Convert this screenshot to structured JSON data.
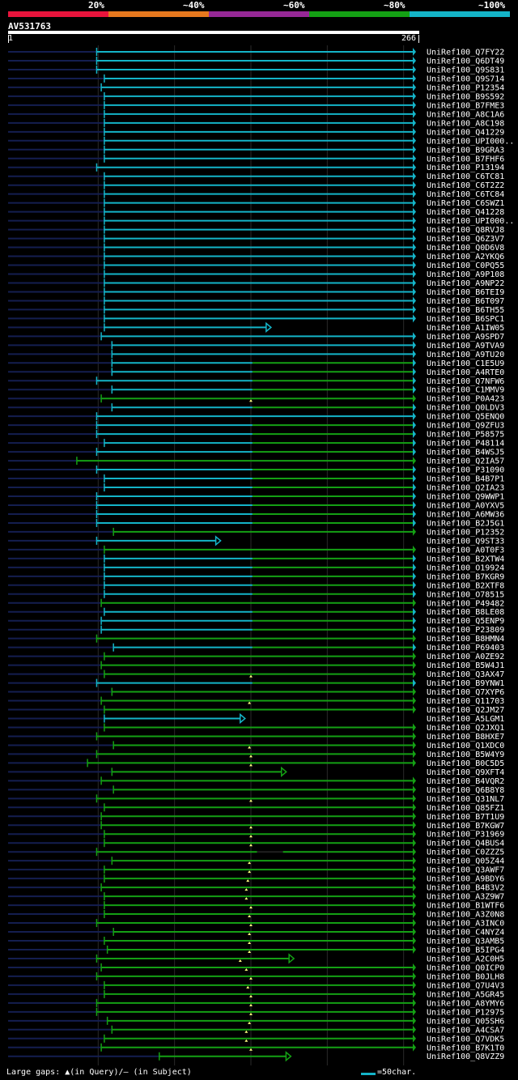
{
  "legend": {
    "segments": [
      {
        "label": "20%",
        "color": "#e8143c"
      },
      {
        "label": "~40%",
        "color": "#e6781e"
      },
      {
        "label": "~60%",
        "color": "#962896"
      },
      {
        "label": "~80%",
        "color": "#14a014"
      },
      {
        "label": "~100%",
        "color": "#14b4c8"
      }
    ]
  },
  "query": {
    "name": "AV531763",
    "start": "1",
    "end": "266"
  },
  "colors": {
    "cyan": "#14b4c8",
    "green": "#14a014",
    "navy": "#141e50",
    "mark": "#ffff80"
  },
  "hits": [
    {
      "name": "UniRef100_Q7FY22",
      "start": 59,
      "color": "cyan",
      "arrow": false
    },
    {
      "name": "UniRef100_Q6DT49",
      "start": 59,
      "color": "cyan",
      "arrow": false
    },
    {
      "name": "UniRef100_Q9S831",
      "start": 59,
      "color": "cyan",
      "arrow": false
    },
    {
      "name": "UniRef100_Q9S714",
      "start": 64,
      "color": "cyan",
      "arrow": false
    },
    {
      "name": "UniRef100_P12354",
      "start": 62,
      "color": "cyan",
      "arrow": false
    },
    {
      "name": "UniRef100_B9S592",
      "start": 64,
      "color": "cyan",
      "arrow": false
    },
    {
      "name": "UniRef100_B7FME3",
      "start": 64,
      "color": "cyan",
      "arrow": false
    },
    {
      "name": "UniRef100_A8C1A6",
      "start": 64,
      "color": "cyan",
      "arrow": false
    },
    {
      "name": "UniRef100_A8C198",
      "start": 64,
      "color": "cyan",
      "arrow": false
    },
    {
      "name": "UniRef100_Q41229",
      "start": 64,
      "color": "cyan",
      "arrow": false
    },
    {
      "name": "UniRef100_UPI000..",
      "start": 64,
      "color": "cyan",
      "arrow": false
    },
    {
      "name": "UniRef100_B9GRA3",
      "start": 64,
      "color": "cyan",
      "arrow": false
    },
    {
      "name": "UniRef100_B7FHF6",
      "start": 64,
      "color": "cyan",
      "arrow": false
    },
    {
      "name": "UniRef100_P13194",
      "start": 59,
      "color": "cyan",
      "arrow": false
    },
    {
      "name": "UniRef100_C6TC81",
      "start": 64,
      "color": "cyan",
      "arrow": false
    },
    {
      "name": "UniRef100_C6T2Z2",
      "start": 64,
      "color": "cyan",
      "arrow": false
    },
    {
      "name": "UniRef100_C6TC84",
      "start": 64,
      "color": "cyan",
      "arrow": false
    },
    {
      "name": "UniRef100_C6SWZ1",
      "start": 64,
      "color": "cyan",
      "arrow": false
    },
    {
      "name": "UniRef100_Q41228",
      "start": 64,
      "color": "cyan",
      "arrow": false
    },
    {
      "name": "UniRef100_UPI000..",
      "start": 64,
      "color": "cyan",
      "arrow": false
    },
    {
      "name": "UniRef100_Q8RVJ8",
      "start": 64,
      "color": "cyan",
      "arrow": false
    },
    {
      "name": "UniRef100_Q6Z3V7",
      "start": 64,
      "color": "cyan",
      "arrow": false
    },
    {
      "name": "UniRef100_Q0D6V8",
      "start": 64,
      "color": "cyan",
      "arrow": false
    },
    {
      "name": "UniRef100_A2YKQ6",
      "start": 64,
      "color": "cyan",
      "arrow": false
    },
    {
      "name": "UniRef100_C0PQ55",
      "start": 64,
      "color": "cyan",
      "arrow": false
    },
    {
      "name": "UniRef100_A9P108",
      "start": 64,
      "color": "cyan",
      "arrow": false
    },
    {
      "name": "UniRef100_A9NP22",
      "start": 64,
      "color": "cyan",
      "arrow": false
    },
    {
      "name": "UniRef100_B6TEI9",
      "start": 64,
      "color": "cyan",
      "arrow": false
    },
    {
      "name": "UniRef100_B6T097",
      "start": 64,
      "color": "cyan",
      "arrow": false
    },
    {
      "name": "UniRef100_B6TH55",
      "start": 64,
      "color": "cyan",
      "arrow": false
    },
    {
      "name": "UniRef100_B6SPC1",
      "start": 64,
      "color": "cyan",
      "arrow": false
    },
    {
      "name": "UniRef100_A1IW05",
      "start": 64,
      "end": 170,
      "color": "cyan",
      "arrow": true
    },
    {
      "name": "UniRef100_A9SPD7",
      "start": 62,
      "color": "cyan",
      "arrow": false
    },
    {
      "name": "UniRef100_A9TVA9",
      "start": 69,
      "color": "cyan",
      "arrow": false
    },
    {
      "name": "UniRef100_A9TU20",
      "start": 69,
      "color": "cyan",
      "arrow": false
    },
    {
      "name": "UniRef100_C1E5U9",
      "start": 69,
      "color": "cyan",
      "arrow": false,
      "split": true
    },
    {
      "name": "UniRef100_A4RTE0",
      "start": 69,
      "color": "cyan",
      "arrow": false,
      "split": true
    },
    {
      "name": "UniRef100_Q7NFW6",
      "start": 59,
      "color": "cyan",
      "arrow": false,
      "split": true
    },
    {
      "name": "UniRef100_C1MMV9",
      "start": 69,
      "color": "cyan",
      "arrow": false,
      "split": true
    },
    {
      "name": "UniRef100_P0A423",
      "start": 62,
      "color": "green",
      "arrow": false,
      "mark": 160
    },
    {
      "name": "UniRef100_Q0LDV3",
      "start": 69,
      "color": "cyan",
      "arrow": false,
      "split": true
    },
    {
      "name": "UniRef100_Q5ENQ0",
      "start": 59,
      "color": "cyan",
      "arrow": false
    },
    {
      "name": "UniRef100_Q9ZFU3",
      "start": 59,
      "color": "cyan",
      "arrow": false,
      "split": true
    },
    {
      "name": "UniRef100_P58575",
      "start": 59,
      "color": "cyan",
      "arrow": false,
      "split": true
    },
    {
      "name": "UniRef100_P48114",
      "start": 64,
      "color": "cyan",
      "arrow": false,
      "split": true
    },
    {
      "name": "UniRef100_B4WSJ5",
      "start": 59,
      "color": "cyan",
      "arrow": false,
      "split": true
    },
    {
      "name": "UniRef100_Q2IA57",
      "start": 46,
      "color": "green",
      "arrow": false
    },
    {
      "name": "UniRef100_P31090",
      "start": 59,
      "color": "cyan",
      "arrow": false,
      "split": true
    },
    {
      "name": "UniRef100_B4B7P1",
      "start": 64,
      "color": "cyan",
      "arrow": false,
      "split": true
    },
    {
      "name": "UniRef100_Q2IA23",
      "start": 64,
      "color": "cyan",
      "arrow": false,
      "split": true
    },
    {
      "name": "UniRef100_Q9WWP1",
      "start": 59,
      "color": "cyan",
      "arrow": false,
      "split": true
    },
    {
      "name": "UniRef100_A0YXV5",
      "start": 59,
      "color": "cyan",
      "arrow": false,
      "split": true
    },
    {
      "name": "UniRef100_A6MW36",
      "start": 59,
      "color": "cyan",
      "arrow": false,
      "split": true
    },
    {
      "name": "UniRef100_B2J5G1",
      "start": 59,
      "color": "cyan",
      "arrow": false,
      "split": true
    },
    {
      "name": "UniRef100_P12352",
      "start": 70,
      "color": "green",
      "arrow": false
    },
    {
      "name": "UniRef100_Q9ST33",
      "start": 59,
      "end": 137,
      "color": "cyan",
      "arrow": true
    },
    {
      "name": "UniRef100_A0T0F3",
      "start": 64,
      "color": "green",
      "arrow": false
    },
    {
      "name": "UniRef100_B2XTW4",
      "start": 64,
      "color": "cyan",
      "arrow": false,
      "split": true
    },
    {
      "name": "UniRef100_O19924",
      "start": 64,
      "color": "cyan",
      "arrow": false,
      "split": true
    },
    {
      "name": "UniRef100_B7KGR9",
      "start": 64,
      "color": "cyan",
      "arrow": false,
      "split": true
    },
    {
      "name": "UniRef100_B2XTF8",
      "start": 64,
      "color": "cyan",
      "arrow": false,
      "split": true
    },
    {
      "name": "UniRef100_O78515",
      "start": 64,
      "color": "cyan",
      "arrow": false,
      "split": true
    },
    {
      "name": "UniRef100_P49482",
      "start": 62,
      "color": "green",
      "arrow": false
    },
    {
      "name": "UniRef100_B8LE08",
      "start": 64,
      "color": "cyan",
      "arrow": false,
      "split": true
    },
    {
      "name": "UniRef100_Q5ENP9",
      "start": 62,
      "color": "cyan",
      "arrow": false,
      "split": true
    },
    {
      "name": "UniRef100_P23809",
      "start": 62,
      "color": "cyan",
      "arrow": false,
      "split": true
    },
    {
      "name": "UniRef100_B8HMN4",
      "start": 59,
      "color": "green",
      "arrow": false
    },
    {
      "name": "UniRef100_P69403",
      "start": 70,
      "color": "cyan",
      "arrow": false,
      "split": true
    },
    {
      "name": "UniRef100_A0ZE92",
      "start": 64,
      "color": "green",
      "arrow": false
    },
    {
      "name": "UniRef100_B5W4J1",
      "start": 62,
      "color": "green",
      "arrow": false
    },
    {
      "name": "UniRef100_Q3AX47",
      "start": 64,
      "color": "green",
      "arrow": false,
      "mark": 160
    },
    {
      "name": "UniRef100_B9YNW1",
      "start": 59,
      "color": "cyan",
      "arrow": false,
      "split": true
    },
    {
      "name": "UniRef100_Q7XYP6",
      "start": 69,
      "color": "green",
      "arrow": false
    },
    {
      "name": "UniRef100_Q11703",
      "start": 62,
      "color": "green",
      "arrow": false,
      "mark": 159
    },
    {
      "name": "UniRef100_Q2JM27",
      "start": 64,
      "color": "green",
      "arrow": false
    },
    {
      "name": "UniRef100_A5LGM1",
      "start": 64,
      "end": 153,
      "color": "cyan",
      "arrow": true
    },
    {
      "name": "UniRef100_Q2JXQ1",
      "start": 64,
      "color": "green",
      "arrow": false
    },
    {
      "name": "UniRef100_B8HXE7",
      "start": 59,
      "color": "green",
      "arrow": false
    },
    {
      "name": "UniRef100_Q1XDC0",
      "start": 70,
      "color": "green",
      "arrow": false,
      "mark": 159
    },
    {
      "name": "UniRef100_B5W4Y9",
      "start": 59,
      "color": "green",
      "arrow": false,
      "mark": 160
    },
    {
      "name": "UniRef100_B0C5D5",
      "start": 53,
      "color": "green",
      "arrow": false,
      "mark": 160
    },
    {
      "name": "UniRef100_Q9XFT4",
      "start": 69,
      "end": 180,
      "color": "green",
      "arrow": true
    },
    {
      "name": "UniRef100_B4VQR2",
      "start": 62,
      "color": "green",
      "arrow": false
    },
    {
      "name": "UniRef100_Q6B8Y8",
      "start": 70,
      "color": "green",
      "arrow": false
    },
    {
      "name": "UniRef100_Q31NL7",
      "start": 59,
      "color": "green",
      "arrow": false,
      "mark": 160
    },
    {
      "name": "UniRef100_Q85FZ1",
      "start": 64,
      "color": "green",
      "arrow": false
    },
    {
      "name": "UniRef100_B7T1U9",
      "start": 62,
      "color": "green",
      "arrow": false
    },
    {
      "name": "UniRef100_B7KGW7",
      "start": 62,
      "color": "green",
      "arrow": false,
      "mark": 160
    },
    {
      "name": "UniRef100_P31969",
      "start": 64,
      "color": "green",
      "arrow": false,
      "mark": 160
    },
    {
      "name": "UniRef100_Q4BUS4",
      "start": 64,
      "color": "green",
      "arrow": false,
      "mark": 160
    },
    {
      "name": "UniRef100_C0ZZZ5",
      "start": 59,
      "color": "green",
      "arrow": false,
      "gap": [
        164,
        181
      ]
    },
    {
      "name": "UniRef100_Q05Z44",
      "start": 69,
      "color": "green",
      "arrow": false,
      "mark": 159
    },
    {
      "name": "UniRef100_Q3AWF7",
      "start": 64,
      "color": "green",
      "arrow": false,
      "mark": 159
    },
    {
      "name": "UniRef100_A9BDY6",
      "start": 64,
      "color": "green",
      "arrow": false,
      "mark": 158
    },
    {
      "name": "UniRef100_B4B3V2",
      "start": 62,
      "color": "green",
      "arrow": false,
      "mark": 157
    },
    {
      "name": "UniRef100_A3Z9W7",
      "start": 64,
      "color": "green",
      "arrow": false,
      "mark": 157
    },
    {
      "name": "UniRef100_B1WTF6",
      "start": 64,
      "color": "green",
      "arrow": false,
      "mark": 160
    },
    {
      "name": "UniRef100_A3Z0N8",
      "start": 64,
      "color": "green",
      "arrow": false,
      "mark": 159
    },
    {
      "name": "UniRef100_A3INC0",
      "start": 59,
      "color": "green",
      "arrow": false,
      "mark": 160
    },
    {
      "name": "UniRef100_C4NYZ4",
      "start": 70,
      "color": "green",
      "arrow": false,
      "mark": 159
    },
    {
      "name": "UniRef100_Q3AMB5",
      "start": 64,
      "color": "green",
      "arrow": false,
      "mark": 159
    },
    {
      "name": "UniRef100_B5IPG4",
      "start": 66,
      "color": "green",
      "arrow": false,
      "mark": 159
    },
    {
      "name": "UniRef100_A2C0H5",
      "start": 59,
      "end": 185,
      "color": "green",
      "arrow": true,
      "mark": 153
    },
    {
      "name": "UniRef100_Q0ICP0",
      "start": 62,
      "color": "green",
      "arrow": false,
      "mark": 157
    },
    {
      "name": "UniRef100_B0JLH8",
      "start": 59,
      "color": "green",
      "arrow": false,
      "mark": 160
    },
    {
      "name": "UniRef100_Q7U4V3",
      "start": 64,
      "color": "green",
      "arrow": false,
      "mark": 158
    },
    {
      "name": "UniRef100_A5GR45",
      "start": 64,
      "color": "green",
      "arrow": false,
      "mark": 160
    },
    {
      "name": "UniRef100_A8YMY6",
      "start": 59,
      "color": "green",
      "arrow": false,
      "mark": 160
    },
    {
      "name": "UniRef100_P12975",
      "start": 59,
      "color": "green",
      "arrow": false,
      "mark": 160
    },
    {
      "name": "UniRef100_Q05SH6",
      "start": 66,
      "color": "green",
      "arrow": false,
      "mark": 159
    },
    {
      "name": "UniRef100_A4CSA7",
      "start": 69,
      "color": "green",
      "arrow": false,
      "mark": 157
    },
    {
      "name": "UniRef100_Q7VDK5",
      "start": 64,
      "color": "green",
      "arrow": false,
      "mark": 157
    },
    {
      "name": "UniRef100_B7K1T0",
      "start": 62,
      "color": "green",
      "arrow": false,
      "mark": 160
    },
    {
      "name": "UniRef100_Q8VZZ9",
      "start": 100,
      "end": 183,
      "color": "green",
      "arrow": true
    }
  ],
  "footer": {
    "gap_note": "Large gaps: ▲(in Query)/— (in Subject)",
    "scale_note": "=50char."
  }
}
